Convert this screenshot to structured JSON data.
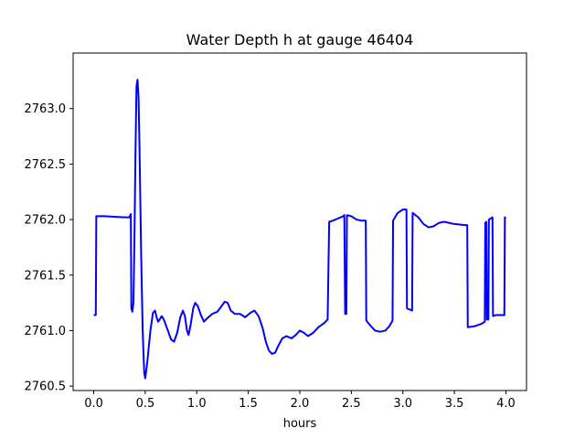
{
  "chart_data": {
    "type": "line",
    "title": "Water Depth h at gauge 46404",
    "xlabel": "hours",
    "ylabel": "",
    "xlim": [
      -0.2,
      4.2
    ],
    "ylim": [
      2760.46,
      2763.5
    ],
    "xticks": [
      0.0,
      0.5,
      1.0,
      1.5,
      2.0,
      2.5,
      3.0,
      3.5,
      4.0
    ],
    "xtick_labels": [
      "0.0",
      "0.5",
      "1.0",
      "1.5",
      "2.0",
      "2.5",
      "3.0",
      "3.5",
      "4.0"
    ],
    "yticks": [
      2760.5,
      2761.0,
      2761.5,
      2762.0,
      2762.5,
      2763.0
    ],
    "ytick_labels": [
      "2760.5",
      "2761.0",
      "2761.5",
      "2762.0",
      "2762.5",
      "2763.0"
    ],
    "grid": false,
    "series": [
      {
        "color": "#0000ff",
        "points": [
          [
            0.0,
            2761.14
          ],
          [
            0.02,
            2761.14
          ],
          [
            0.025,
            2762.03
          ],
          [
            0.1,
            2762.03
          ],
          [
            0.2,
            2762.025
          ],
          [
            0.3,
            2762.02
          ],
          [
            0.345,
            2762.02
          ],
          [
            0.36,
            2762.05
          ],
          [
            0.365,
            2761.2
          ],
          [
            0.375,
            2761.17
          ],
          [
            0.385,
            2761.25
          ],
          [
            0.395,
            2761.8
          ],
          [
            0.405,
            2762.6
          ],
          [
            0.415,
            2763.2
          ],
          [
            0.425,
            2763.26
          ],
          [
            0.435,
            2763.1
          ],
          [
            0.445,
            2762.6
          ],
          [
            0.46,
            2761.7
          ],
          [
            0.475,
            2761.0
          ],
          [
            0.49,
            2760.62
          ],
          [
            0.5,
            2760.57
          ],
          [
            0.52,
            2760.72
          ],
          [
            0.55,
            2761.0
          ],
          [
            0.575,
            2761.16
          ],
          [
            0.595,
            2761.18
          ],
          [
            0.61,
            2761.12
          ],
          [
            0.625,
            2761.08
          ],
          [
            0.64,
            2761.1
          ],
          [
            0.66,
            2761.13
          ],
          [
            0.68,
            2761.1
          ],
          [
            0.72,
            2761.0
          ],
          [
            0.75,
            2760.92
          ],
          [
            0.78,
            2760.9
          ],
          [
            0.81,
            2760.98
          ],
          [
            0.84,
            2761.12
          ],
          [
            0.865,
            2761.18
          ],
          [
            0.885,
            2761.13
          ],
          [
            0.905,
            2761.0
          ],
          [
            0.92,
            2760.96
          ],
          [
            0.94,
            2761.05
          ],
          [
            0.965,
            2761.2
          ],
          [
            0.985,
            2761.25
          ],
          [
            1.01,
            2761.22
          ],
          [
            1.04,
            2761.14
          ],
          [
            1.07,
            2761.08
          ],
          [
            1.1,
            2761.11
          ],
          [
            1.15,
            2761.15
          ],
          [
            1.2,
            2761.17
          ],
          [
            1.24,
            2761.22
          ],
          [
            1.27,
            2761.26
          ],
          [
            1.3,
            2761.25
          ],
          [
            1.33,
            2761.18
          ],
          [
            1.37,
            2761.15
          ],
          [
            1.42,
            2761.15
          ],
          [
            1.47,
            2761.12
          ],
          [
            1.52,
            2761.16
          ],
          [
            1.56,
            2761.18
          ],
          [
            1.6,
            2761.13
          ],
          [
            1.64,
            2761.02
          ],
          [
            1.67,
            2760.9
          ],
          [
            1.7,
            2760.82
          ],
          [
            1.73,
            2760.79
          ],
          [
            1.76,
            2760.8
          ],
          [
            1.79,
            2760.86
          ],
          [
            1.83,
            2760.93
          ],
          [
            1.87,
            2760.95
          ],
          [
            1.92,
            2760.93
          ],
          [
            1.96,
            2760.96
          ],
          [
            2.0,
            2761.0
          ],
          [
            2.04,
            2760.98
          ],
          [
            2.08,
            2760.95
          ],
          [
            2.13,
            2760.98
          ],
          [
            2.18,
            2761.03
          ],
          [
            2.24,
            2761.07
          ],
          [
            2.27,
            2761.1
          ],
          [
            2.285,
            2761.98
          ],
          [
            2.32,
            2761.99
          ],
          [
            2.37,
            2762.01
          ],
          [
            2.42,
            2762.03
          ],
          [
            2.432,
            2762.04
          ],
          [
            2.44,
            2761.15
          ],
          [
            2.452,
            2761.15
          ],
          [
            2.457,
            2762.04
          ],
          [
            2.5,
            2762.03
          ],
          [
            2.55,
            2762.0
          ],
          [
            2.6,
            2761.99
          ],
          [
            2.64,
            2761.99
          ],
          [
            2.645,
            2761.09
          ],
          [
            2.68,
            2761.05
          ],
          [
            2.73,
            2761.0
          ],
          [
            2.78,
            2760.99
          ],
          [
            2.83,
            2761.0
          ],
          [
            2.87,
            2761.04
          ],
          [
            2.9,
            2761.09
          ],
          [
            2.905,
            2761.99
          ],
          [
            2.95,
            2762.06
          ],
          [
            3.0,
            2762.09
          ],
          [
            3.035,
            2762.09
          ],
          [
            3.04,
            2761.2
          ],
          [
            3.09,
            2761.18
          ],
          [
            3.095,
            2762.06
          ],
          [
            3.15,
            2762.02
          ],
          [
            3.2,
            2761.96
          ],
          [
            3.25,
            2761.93
          ],
          [
            3.3,
            2761.94
          ],
          [
            3.35,
            2761.97
          ],
          [
            3.4,
            2761.98
          ],
          [
            3.5,
            2761.96
          ],
          [
            3.6,
            2761.95
          ],
          [
            3.625,
            2761.95
          ],
          [
            3.63,
            2761.03
          ],
          [
            3.7,
            2761.04
          ],
          [
            3.76,
            2761.06
          ],
          [
            3.795,
            2761.08
          ],
          [
            3.8,
            2761.97
          ],
          [
            3.81,
            2761.98
          ],
          [
            3.815,
            2761.1
          ],
          [
            3.83,
            2761.1
          ],
          [
            3.835,
            2762.0
          ],
          [
            3.87,
            2762.02
          ],
          [
            3.875,
            2761.13
          ],
          [
            3.9,
            2761.14
          ],
          [
            3.95,
            2761.14
          ],
          [
            3.985,
            2761.14
          ],
          [
            3.99,
            2762.02
          ],
          [
            4.0,
            2762.01
          ]
        ]
      }
    ]
  }
}
